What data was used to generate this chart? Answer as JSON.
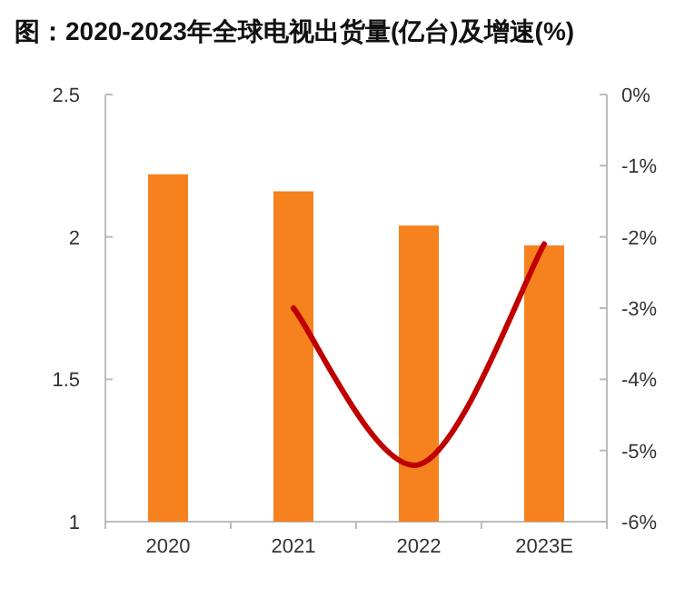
{
  "chart_data": {
    "type": "bar",
    "title": "图：2020-2023年全球电视出货量(亿台)及增速(%)",
    "categories": [
      "2020",
      "2021",
      "2022",
      "2023E"
    ],
    "series": [
      {
        "color": "#f5821f",
        "values": [
          2.22,
          2.16,
          2.04,
          1.97
        ]
      },
      {
        "type": "line",
        "axis": "y2",
        "color": "#c00000",
        "marker": "none",
        "values": [
          null,
          -3.0,
          -5.2,
          -2.1
        ]
      }
    ],
    "ylim": [
      1,
      2.5
    ],
    "yticks": [
      1,
      1.5,
      2,
      2.5
    ],
    "y2lim": [
      -6,
      0
    ],
    "y2ticks": [
      {
        "value": -6,
        "label": "-6%"
      },
      {
        "value": -5,
        "label": "-5%"
      },
      {
        "value": -4,
        "label": "-4%"
      },
      {
        "value": -3,
        "label": "-3%"
      },
      {
        "value": -2,
        "label": "-2%"
      },
      {
        "value": -1,
        "label": "-1%"
      },
      {
        "value": 0,
        "label": "0%"
      }
    ],
    "grid": false
  }
}
